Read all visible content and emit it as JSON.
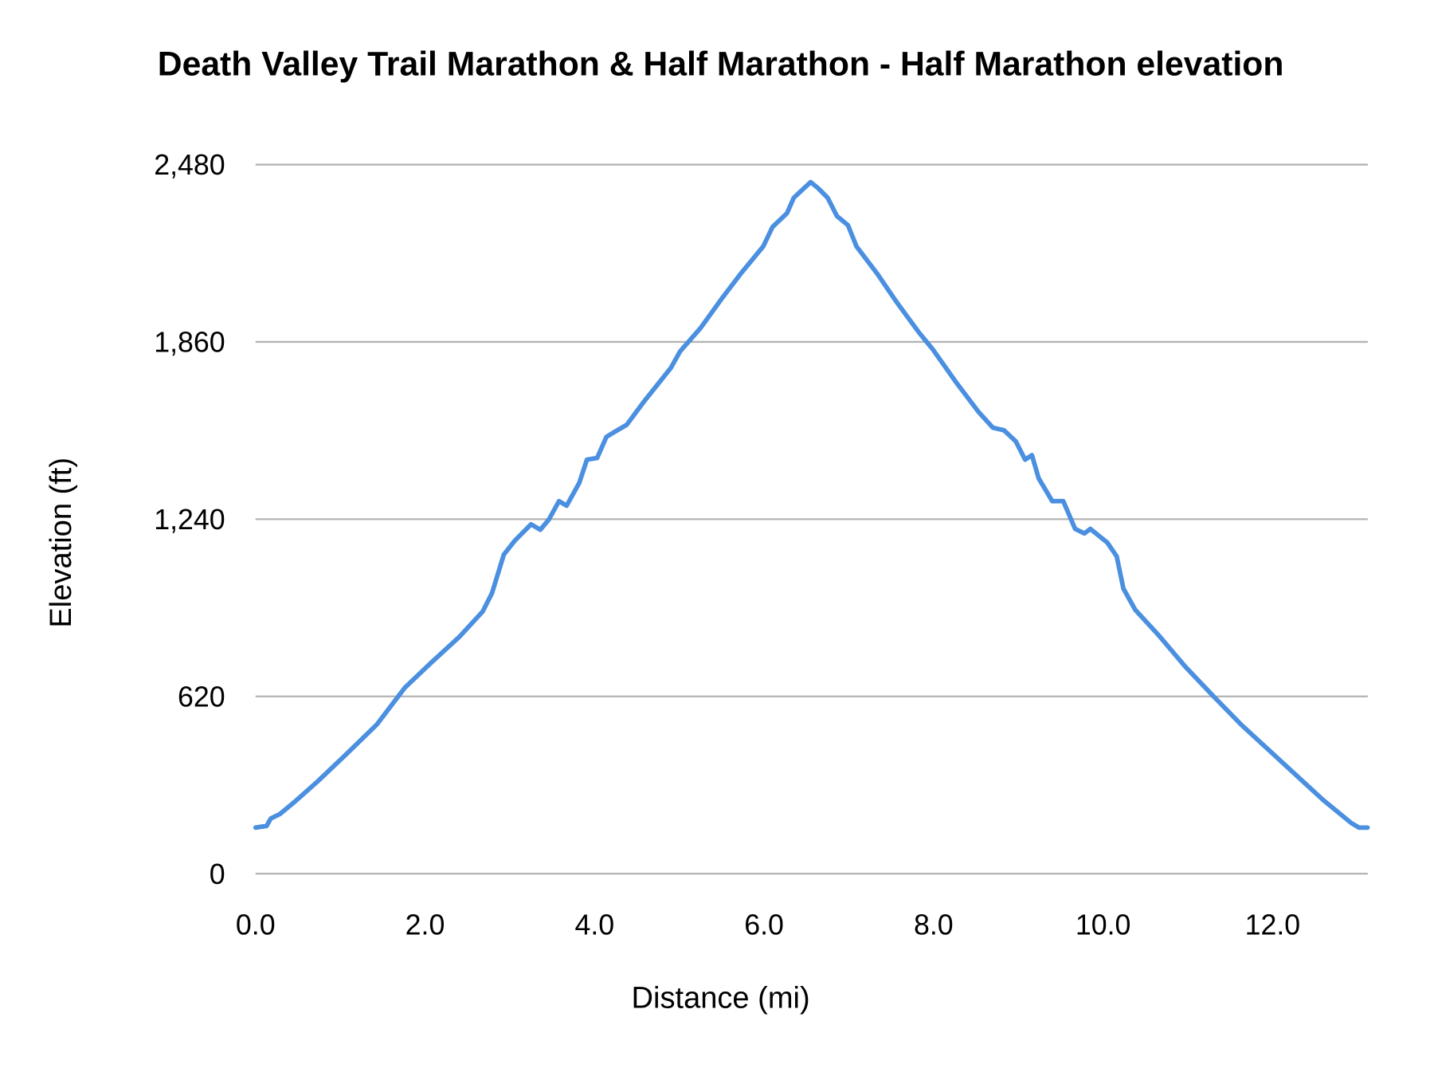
{
  "chart_data": {
    "type": "line",
    "title": "Death Valley Trail Marathon & Half Marathon - Half Marathon elevation",
    "xlabel": "Distance (mi)",
    "ylabel": "Elevation (ft)",
    "xlim": [
      0,
      13.12
    ],
    "ylim": [
      0,
      2480
    ],
    "x_ticks": [
      0,
      2,
      4,
      6,
      8,
      10,
      12
    ],
    "x_tick_labels": [
      "0.0",
      "2.0",
      "4.0",
      "6.0",
      "8.0",
      "10.0",
      "12.0"
    ],
    "y_ticks": [
      0,
      620,
      1240,
      1860,
      2480
    ],
    "y_tick_labels": [
      "0",
      "620",
      "1,240",
      "1,860",
      "2,480"
    ],
    "grid": "horizontal",
    "legend": "none",
    "colors": {
      "series": "#4a8fe0",
      "grid": "#b3b3b3"
    },
    "series": [
      {
        "x": [
          0,
          0.13,
          0.18,
          0.29,
          0.46,
          0.73,
          1.05,
          1.43,
          1.76,
          2.08,
          2.41,
          2.68,
          2.79,
          2.93,
          3.06,
          3.25,
          3.36,
          3.46,
          3.58,
          3.67,
          3.82,
          3.91,
          4.03,
          4.14,
          4.27,
          4.38,
          4.58,
          4.9,
          5.01,
          5.25,
          5.5,
          5.72,
          5.99,
          6.1,
          6.27,
          6.35,
          6.48,
          6.55,
          6.64,
          6.75,
          6.86,
          6.99,
          7.09,
          7.34,
          7.56,
          7.83,
          7.99,
          8.26,
          8.53,
          8.7,
          8.83,
          8.97,
          9.08,
          9.16,
          9.24,
          9.4,
          9.53,
          9.67,
          9.78,
          9.85,
          10.05,
          10.16,
          10.24,
          10.38,
          10.65,
          10.97,
          11.3,
          11.63,
          11.95,
          12.28,
          12.6,
          12.93,
          13.02,
          13.12
        ],
        "y": [
          161,
          167,
          193,
          209,
          251,
          322,
          412,
          521,
          650,
          740,
          830,
          917,
          981,
          1116,
          1165,
          1222,
          1203,
          1238,
          1303,
          1287,
          1367,
          1448,
          1454,
          1528,
          1551,
          1570,
          1650,
          1769,
          1827,
          1908,
          2011,
          2097,
          2194,
          2262,
          2310,
          2364,
          2400,
          2419,
          2397,
          2364,
          2300,
          2268,
          2194,
          2097,
          2001,
          1892,
          1834,
          1721,
          1615,
          1560,
          1551,
          1512,
          1448,
          1464,
          1383,
          1303,
          1303,
          1206,
          1190,
          1206,
          1158,
          1110,
          997,
          923,
          836,
          724,
          621,
          521,
          434,
          344,
          257,
          177,
          161,
          161
        ]
      }
    ]
  }
}
